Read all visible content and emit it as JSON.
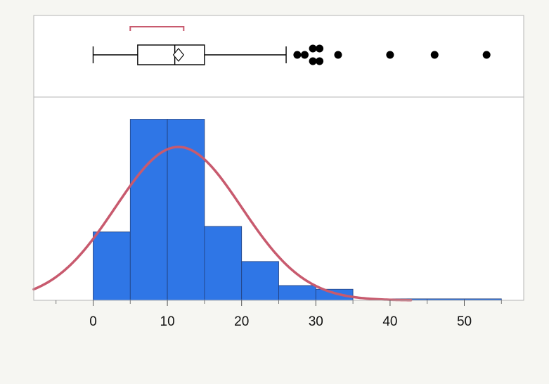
{
  "colors": {
    "background": "#f6f6f2",
    "panel": "#ffffff",
    "frame": "#b4b4b4",
    "bar_fill": "#2f76e6",
    "bar_stroke": "#233f7a",
    "normal_curve": "#c85a6e",
    "outlier": "#000000",
    "tick_text": "#111111"
  },
  "chart_data": [
    {
      "type": "box",
      "orientation": "horizontal",
      "whisker_low": 0,
      "q1": 6,
      "median": 11,
      "q3": 15,
      "whisker_high": 26,
      "mean": 11.5,
      "mean_ci": [
        10.8,
        12.2
      ],
      "shortest_half": [
        5,
        12.2
      ],
      "outliers": [
        {
          "x": 27.5,
          "offset": 0
        },
        {
          "x": 28.5,
          "offset": 0
        },
        {
          "x": 29.6,
          "offset": -1
        },
        {
          "x": 30.5,
          "offset": -1
        },
        {
          "x": 29.6,
          "offset": 1
        },
        {
          "x": 30.5,
          "offset": 1
        },
        {
          "x": 33,
          "offset": 0
        },
        {
          "x": 40,
          "offset": 0
        },
        {
          "x": 46,
          "offset": 0
        },
        {
          "x": 53,
          "offset": 0
        }
      ],
      "xlim": [
        -8,
        58
      ]
    },
    {
      "type": "histogram",
      "bins": [
        {
          "start": 0,
          "end": 5,
          "value": 0.185
        },
        {
          "start": 5,
          "end": 10,
          "value": 0.49
        },
        {
          "start": 10,
          "end": 15,
          "value": 0.49
        },
        {
          "start": 15,
          "end": 20,
          "value": 0.2
        },
        {
          "start": 20,
          "end": 25,
          "value": 0.105
        },
        {
          "start": 25,
          "end": 30,
          "value": 0.04
        },
        {
          "start": 30,
          "end": 35,
          "value": 0.03
        },
        {
          "start": 35,
          "end": 40,
          "value": 0
        },
        {
          "start": 40,
          "end": 45,
          "value": 0.004
        },
        {
          "start": 45,
          "end": 50,
          "value": 0.004
        },
        {
          "start": 50,
          "end": 55,
          "value": 0.004
        }
      ],
      "normal_fit": {
        "mean": 11.5,
        "sd": 8.5,
        "peak": 0.415
      },
      "xlim": [
        -8,
        58
      ],
      "ylim": [
        0,
        0.55
      ],
      "x_ticks": [
        0,
        10,
        20,
        30,
        40,
        50
      ],
      "x_tick_labels": [
        "0",
        "10",
        "20",
        "30",
        "40",
        "50"
      ],
      "x_minor_ticks": [
        -5,
        5,
        15,
        25,
        35,
        45,
        55
      ],
      "grid": false,
      "legend": "none"
    }
  ]
}
